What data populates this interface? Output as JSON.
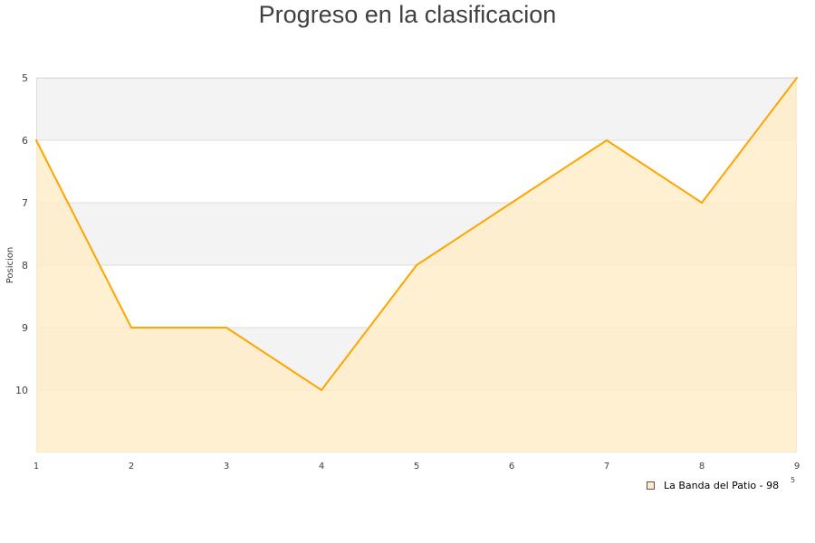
{
  "chart_data": {
    "type": "area",
    "title": "Progreso en la clasificacion",
    "ylabel": "Posicion",
    "xlabel": "",
    "x": [
      1,
      2,
      3,
      4,
      5,
      6,
      7,
      8,
      9
    ],
    "series": [
      {
        "name": "La Banda del Patio - 98",
        "values": [
          6,
          9,
          9,
          10,
          8,
          7,
          6,
          7,
          5
        ],
        "color": "#ffa500",
        "fill": "#ffecc6"
      }
    ],
    "xlim": [
      1,
      9
    ],
    "ylim": [
      5,
      11
    ],
    "y_inverted": true,
    "yticks": [
      5,
      6,
      7,
      8,
      9,
      10
    ],
    "xticks": [
      1,
      2,
      3,
      4,
      5,
      6,
      7,
      8,
      9
    ],
    "grid": true,
    "band_color": "#f3f3f3",
    "legend_placement": "bottom-right",
    "legend_fragment": "5"
  }
}
